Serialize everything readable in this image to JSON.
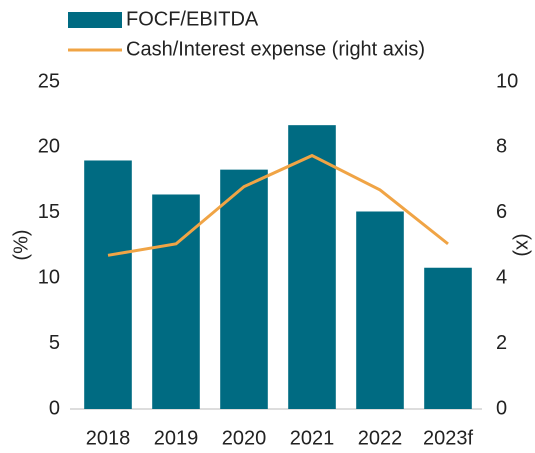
{
  "chart_data": {
    "type": "bar",
    "categories": [
      "2018",
      "2019",
      "2020",
      "2021",
      "2022",
      "2023f"
    ],
    "series": [
      {
        "name": "FOCF/EBITDA",
        "type": "bar",
        "color": "#006b82",
        "values": [
          19.0,
          16.4,
          18.3,
          21.7,
          15.1,
          10.8
        ]
      },
      {
        "name": "Cash/Interest expense (right axis)",
        "type": "line",
        "axis": "y2",
        "color": "#f0a445",
        "values": [
          4.7,
          5.05,
          6.8,
          7.75,
          6.7,
          5.05
        ]
      }
    ],
    "y_label": "(%)",
    "y2_label": "(x)",
    "ylim": [
      0,
      25
    ],
    "yticks": [
      0,
      5,
      10,
      15,
      20,
      25
    ],
    "y2lim": [
      0,
      10
    ],
    "y2ticks": [
      0,
      2,
      4,
      6,
      8,
      10
    ],
    "grid": false
  }
}
